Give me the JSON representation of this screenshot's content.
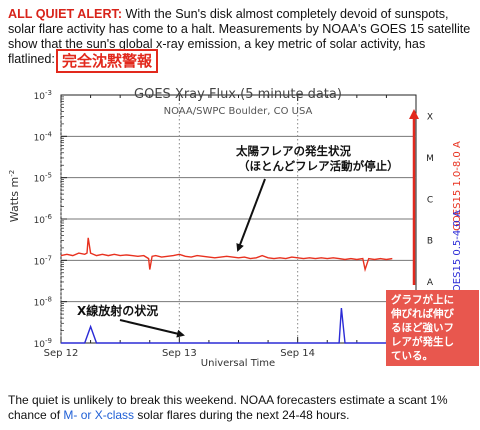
{
  "intro": {
    "alert_label": "ALL QUIET ALERT:",
    "text": " With the Sun's disk almost completely devoid of sunspots, solar flare activity has come to a halt. Measurements by NOAA's GOES 15 satellite show that the sun's global x-ray emission, a key metric of solar activity, has flatlined:"
  },
  "jp_title": "完全沈黙警報",
  "annotations": {
    "flare_line1": "太陽フレアの発生状況",
    "flare_line2": "（ほとんどフレア活動が停止）",
    "xray_label": "X線放射の状況",
    "note_lines": [
      "グラフが上に",
      "伸びれば伸び",
      "るほど強いフ",
      "レアが発生し",
      "ている。"
    ]
  },
  "colors": {
    "alert_red": "#d8231a",
    "long_channel": "#e8311f",
    "short_channel": "#2b2bd6",
    "annotation_red": "#e2291d",
    "link_blue": "#1f5fd6"
  },
  "chart_data": {
    "type": "line",
    "title": "GOES Xray Flux (5 minute data)",
    "subtitle": "NOAA/SWPC Boulder, CO USA",
    "xlabel": "Universal Time",
    "ylabel": "Watts m",
    "ylabel_sup": "-2",
    "y_scale": "log",
    "ylim": [
      1e-09,
      0.001
    ],
    "x_unit": "days since Sep 12 00:00 UT",
    "xlim": [
      0,
      3
    ],
    "x_ticks": [
      {
        "value": 0,
        "label": "Sep 12"
      },
      {
        "value": 1,
        "label": "Sep 13"
      },
      {
        "value": 2,
        "label": "Sep 14"
      }
    ],
    "y_ticks": [
      {
        "exp": -3,
        "label": "10"
      },
      {
        "exp": -4,
        "label": "10"
      },
      {
        "exp": -5,
        "label": "10"
      },
      {
        "exp": -6,
        "label": "10"
      },
      {
        "exp": -7,
        "label": "10"
      },
      {
        "exp": -8,
        "label": "10"
      },
      {
        "exp": -9,
        "label": "10"
      }
    ],
    "flare_classes": [
      "X",
      "M",
      "C",
      "B",
      "A"
    ],
    "right_labels": {
      "long": "GOES15 1.0-8.0 A",
      "short": "GOES15 0.5-4.0 A"
    },
    "grid": true,
    "series": [
      {
        "name": "GOES15 1.0-8.0 A",
        "color": "#e8311f",
        "x": [
          0.0,
          0.05,
          0.1,
          0.15,
          0.2,
          0.22,
          0.23,
          0.25,
          0.3,
          0.35,
          0.4,
          0.45,
          0.5,
          0.55,
          0.6,
          0.65,
          0.7,
          0.74,
          0.75,
          0.77,
          0.8,
          0.85,
          0.9,
          0.95,
          1.0,
          1.05,
          1.1,
          1.15,
          1.2,
          1.25,
          1.3,
          1.35,
          1.4,
          1.45,
          1.5,
          1.55,
          1.6,
          1.65,
          1.7,
          1.75,
          1.8,
          1.85,
          1.9,
          1.95,
          2.0,
          2.05,
          2.1,
          2.15,
          2.2,
          2.25,
          2.3,
          2.35,
          2.4,
          2.45,
          2.5,
          2.55,
          2.57,
          2.6,
          2.65,
          2.7,
          2.75,
          2.8
        ],
        "y": [
          1.3e-07,
          1.4e-07,
          1.3e-07,
          1.5e-07,
          1.4e-07,
          1.5e-07,
          3.5e-07,
          1.5e-07,
          1.3e-07,
          1.4e-07,
          1.3e-07,
          1.4e-07,
          1.3e-07,
          1.35e-07,
          1.3e-07,
          1.25e-07,
          1.3e-07,
          1.1e-07,
          6e-08,
          1.25e-07,
          1.3e-07,
          1.2e-07,
          1.25e-07,
          1.3e-07,
          1.4e-07,
          1.25e-07,
          1.2e-07,
          1.3e-07,
          1.25e-07,
          1.2e-07,
          1.15e-07,
          1.2e-07,
          1.25e-07,
          1.2e-07,
          1.15e-07,
          1.2e-07,
          1.1e-07,
          1.15e-07,
          1.3e-07,
          1.15e-07,
          1.1e-07,
          1.15e-07,
          1.1e-07,
          1.2e-07,
          1.15e-07,
          1.1e-07,
          1.15e-07,
          1.1e-07,
          1.15e-07,
          1.1e-07,
          1.15e-07,
          1.1e-07,
          1.05e-07,
          1.1e-07,
          1.05e-07,
          1.1e-07,
          6e-08,
          1.1e-07,
          1.05e-07,
          1.1e-07,
          1.05e-07,
          1.1e-07
        ]
      },
      {
        "name": "GOES15 0.5-4.0 A",
        "color": "#2b2bd6",
        "x": [
          0.0,
          0.1,
          0.2,
          0.25,
          0.3,
          0.4,
          0.5,
          0.6,
          0.7,
          0.8,
          0.9,
          1.0,
          1.1,
          1.2,
          1.3,
          1.4,
          1.5,
          1.6,
          1.7,
          1.8,
          1.9,
          2.0,
          2.1,
          2.2,
          2.3,
          2.35,
          2.37,
          2.4,
          2.5,
          2.6,
          2.7,
          2.8
        ],
        "y": [
          1e-09,
          1e-09,
          1e-09,
          2.5e-09,
          1e-09,
          1e-09,
          1e-09,
          1e-09,
          1e-09,
          1e-09,
          1e-09,
          1e-09,
          1e-09,
          1e-09,
          1e-09,
          1e-09,
          1e-09,
          1e-09,
          1e-09,
          1e-09,
          1e-09,
          1e-09,
          1e-09,
          1e-09,
          1e-09,
          1e-09,
          7e-09,
          1e-09,
          1e-09,
          1e-09,
          1e-09,
          1e-09
        ]
      }
    ]
  },
  "outro": {
    "text_before": "The quiet is unlikely to break this weekend. NOAA forecasters estimate a scant 1% chance of ",
    "link_text": "M- or X-class",
    "text_after": " solar flares during the next 24-48 hours."
  }
}
